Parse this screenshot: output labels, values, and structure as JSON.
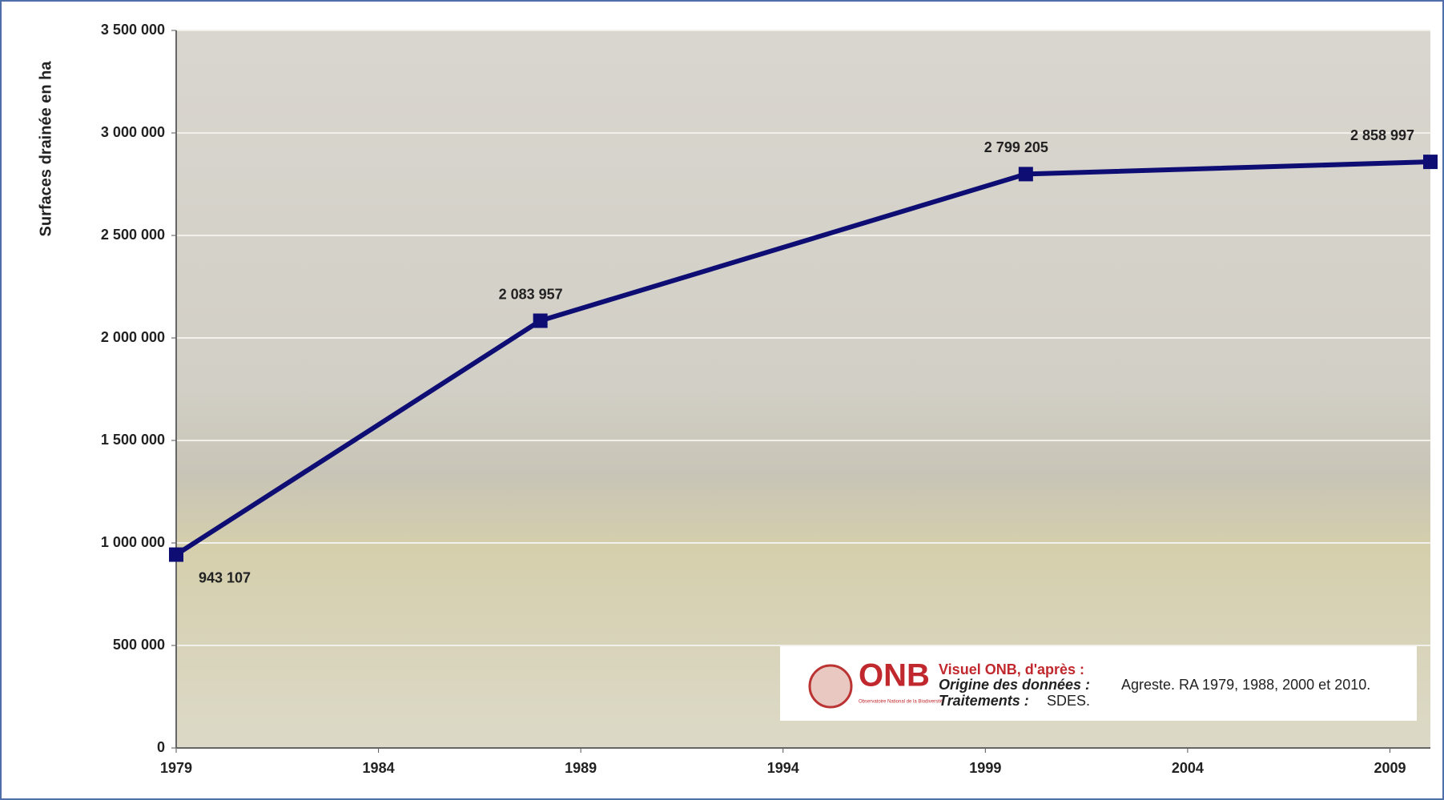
{
  "chart_data": {
    "type": "line",
    "y_label": "Surfaces drainée en ha",
    "x": [
      1979,
      1988,
      2000,
      2010
    ],
    "values": [
      943107,
      2083957,
      2799205,
      2858997
    ],
    "value_labels": [
      "943 107",
      "2 083 957",
      "2 799 205",
      "2 858 997"
    ],
    "color": "#0d0d73",
    "xlim": [
      1979,
      2010
    ],
    "xticks": [
      1979,
      1984,
      1989,
      1994,
      1999,
      2004,
      2009
    ],
    "ylim": [
      0,
      3500000
    ],
    "yticks": [
      0,
      {
        "value": 500000,
        "label": "500 000"
      },
      {
        "value": 1000000,
        "label": "1 000 000"
      },
      {
        "value": 1500000,
        "label": "1 500 000"
      },
      {
        "value": 2000000,
        "label": "2 000 000"
      },
      {
        "value": 2500000,
        "label": "2 500 000"
      },
      {
        "value": 3000000,
        "label": "3 000 000"
      },
      {
        "value": 3500000,
        "label": "3 500 000"
      }
    ],
    "grid": true,
    "source": {
      "logo": "ONB",
      "logo_caption": "Observatoire National de la Biodiversité",
      "line1": "Visuel ONB, d'après :",
      "label2": "Origine des données :",
      "text2": "Agreste. RA 1979, 1988, 2000 et 2010.",
      "label3": "Traitements :",
      "text3": "SDES."
    }
  }
}
